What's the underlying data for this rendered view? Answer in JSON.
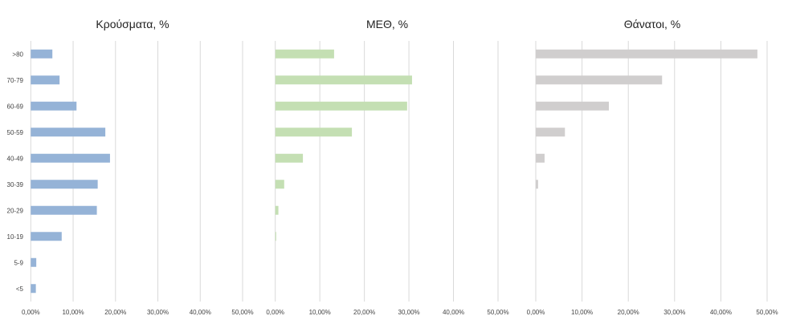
{
  "chart_data": [
    {
      "type": "bar",
      "orientation": "horizontal",
      "title": "Κρούσματα, %",
      "categories": [
        ">80",
        "70-79",
        "60-69",
        "50-59",
        "40-49",
        "30-39",
        "20-29",
        "10-19",
        "5-9",
        "<5"
      ],
      "values": [
        5.1,
        6.8,
        10.8,
        17.6,
        18.7,
        15.8,
        15.6,
        7.3,
        1.3,
        1.2
      ],
      "xlim": [
        0,
        50
      ],
      "xticks": [
        "0,00%",
        "10,00%",
        "20,00%",
        "30,00%",
        "40,00%",
        "50,00%"
      ],
      "color": "#95b3d7",
      "grid": true
    },
    {
      "type": "bar",
      "orientation": "horizontal",
      "title": "ΜΕΘ, %",
      "categories": [
        ">80",
        "70-79",
        "60-69",
        "50-59",
        "40-49",
        "30-39",
        "20-29",
        "10-19",
        "5-9",
        "<5"
      ],
      "values": [
        13.2,
        30.7,
        29.6,
        17.2,
        6.2,
        2.0,
        0.7,
        0.2,
        0.0,
        0.0
      ],
      "xlim": [
        0,
        50
      ],
      "xticks": [
        "0,00%",
        "10,00%",
        "20,00%",
        "30,00%",
        "40,00%",
        "50,00%"
      ],
      "color": "#c4dfb3",
      "grid": true
    },
    {
      "type": "bar",
      "orientation": "horizontal",
      "title": "Θάνατοι, %",
      "categories": [
        ">80",
        "70-79",
        "60-69",
        "50-59",
        "40-49",
        "30-39",
        "20-29",
        "10-19",
        "5-9",
        "<5"
      ],
      "values": [
        47.9,
        27.3,
        15.8,
        6.3,
        1.9,
        0.5,
        0.0,
        0.0,
        0.0,
        0.0
      ],
      "xlim": [
        0,
        50
      ],
      "xticks": [
        "0,00%",
        "10,00%",
        "20,00%",
        "30,00%",
        "40,00%",
        "50,00%"
      ],
      "color": "#d0cece",
      "grid": true
    }
  ]
}
